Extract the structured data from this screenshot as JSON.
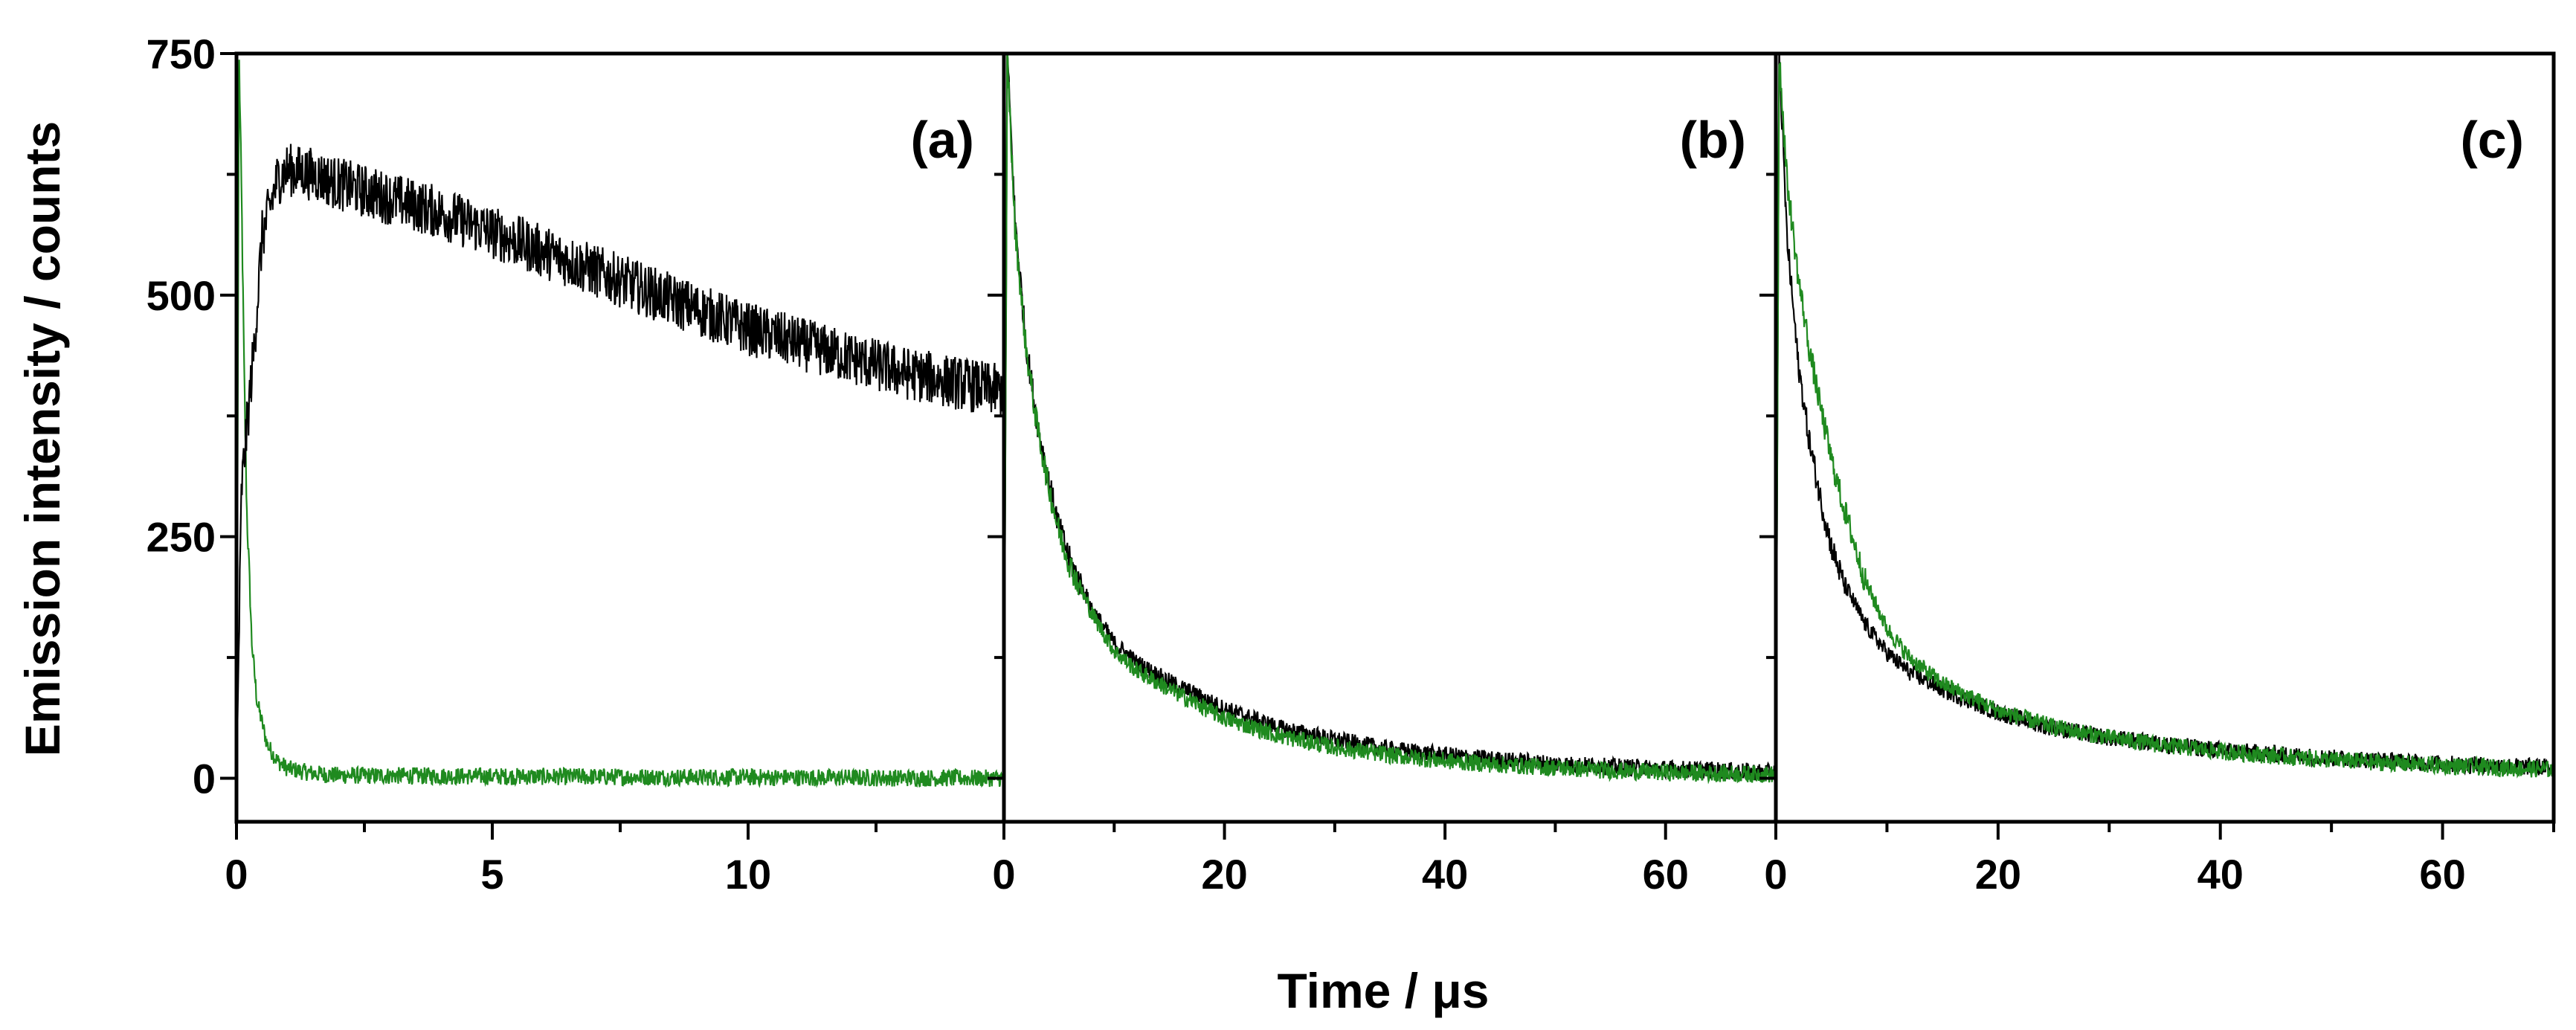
{
  "chart_data": {
    "type": "line",
    "ylabel": "Emission intensity / counts",
    "xlabel": "Time / μs",
    "ylim": [
      -45,
      750
    ],
    "yticks": [
      0,
      250,
      500,
      750
    ],
    "colors": {
      "black_trace": "#000000",
      "green_trace": "#1f8a1f",
      "frame": "#000000"
    },
    "panels": [
      {
        "label": "(a)",
        "xlim": [
          0,
          15
        ],
        "xticks": [
          0,
          5,
          10
        ],
        "series": [
          {
            "name": "black trace",
            "color": "#000000",
            "x": [
              0,
              0.1,
              0.2,
              0.35,
              0.5,
              0.8,
              1.0,
              1.5,
              2,
              3,
              4,
              5,
              6,
              7,
              8,
              9,
              10,
              11,
              12,
              13,
              14,
              15
            ],
            "y": [
              0,
              300,
              360,
              450,
              560,
              620,
              630,
              625,
              615,
              600,
              585,
              565,
              545,
              525,
              505,
              485,
              465,
              450,
              435,
              420,
              410,
              400
            ]
          },
          {
            "name": "green trace",
            "color": "#1f8a1f",
            "x": [
              0,
              0.05,
              0.1,
              0.15,
              0.2,
              0.3,
              0.4,
              0.6,
              0.8,
              1.0,
              1.5,
              2,
              5,
              10,
              15
            ],
            "y": [
              0,
              750,
              600,
              420,
              280,
              140,
              80,
              35,
              18,
              10,
              5,
              3,
              2,
              1,
              0
            ]
          }
        ]
      },
      {
        "label": "(b)",
        "xlim": [
          0,
          70
        ],
        "xticks": [
          0,
          20,
          40,
          60
        ],
        "series": [
          {
            "name": "black trace",
            "color": "#000000",
            "x": [
              0,
              0.3,
              1,
              2,
              3,
              4,
              5,
              6,
              8,
              10,
              12,
              15,
              20,
              25,
              30,
              35,
              40,
              45,
              50,
              55,
              60,
              65,
              70
            ],
            "y": [
              0,
              750,
              580,
              450,
              370,
              310,
              260,
              225,
              175,
              140,
              120,
              100,
              72,
              52,
              40,
              30,
              24,
              19,
              15,
              12,
              10,
              8,
              6
            ]
          },
          {
            "name": "green trace",
            "color": "#1f8a1f",
            "x": [
              0,
              0.3,
              1,
              2,
              3,
              4,
              5,
              6,
              8,
              10,
              12,
              15,
              20,
              25,
              30,
              35,
              40,
              45,
              50,
              55,
              60,
              65,
              70
            ],
            "y": [
              0,
              750,
              570,
              445,
              365,
              305,
              255,
              220,
              170,
              132,
              112,
              92,
              62,
              44,
              32,
              24,
              18,
              14,
              11,
              8,
              6,
              5,
              4
            ]
          }
        ]
      },
      {
        "label": "(c)",
        "xlim": [
          0,
          70
        ],
        "xticks": [
          0,
          20,
          40,
          60
        ],
        "series": [
          {
            "name": "black trace",
            "color": "#000000",
            "x": [
              0,
              0.3,
              1,
              2,
              3,
              4,
              5,
              6,
              8,
              10,
              12,
              15,
              20,
              25,
              30,
              35,
              40,
              45,
              50,
              55,
              60,
              65,
              70
            ],
            "y": [
              0,
              750,
              560,
              430,
              350,
              290,
              240,
              205,
              160,
              130,
              110,
              92,
              68,
              52,
              42,
              35,
              29,
              25,
              21,
              18,
              15,
              13,
              11
            ]
          },
          {
            "name": "green trace",
            "color": "#1f8a1f",
            "x": [
              0,
              0.3,
              1,
              2,
              3,
              4,
              5,
              6,
              8,
              10,
              12,
              15,
              20,
              25,
              30,
              35,
              40,
              45,
              50,
              55,
              60,
              65,
              70
            ],
            "y": [
              0,
              750,
              620,
              520,
              445,
              385,
              330,
              285,
              205,
              155,
              125,
              98,
              70,
              53,
              42,
              34,
              28,
              23,
              19,
              16,
              13,
              11,
              9
            ]
          }
        ]
      }
    ]
  }
}
